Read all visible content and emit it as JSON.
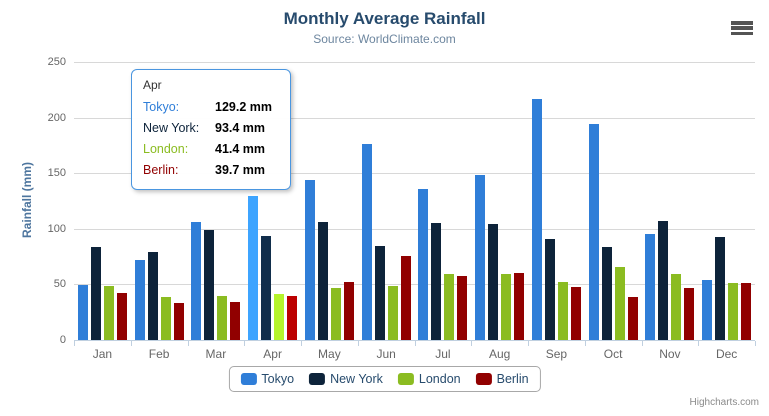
{
  "chart_data": {
    "type": "bar",
    "title": "Monthly Average Rainfall",
    "subtitle": "Source: WorldClimate.com",
    "xlabel": "",
    "ylabel": "Rainfall (mm)",
    "ylim": [
      0,
      250
    ],
    "yticks": [
      0,
      50,
      100,
      150,
      200,
      250
    ],
    "grid": true,
    "legend_position": "bottom-center",
    "categories": [
      "Jan",
      "Feb",
      "Mar",
      "Apr",
      "May",
      "Jun",
      "Jul",
      "Aug",
      "Sep",
      "Oct",
      "Nov",
      "Dec"
    ],
    "series": [
      {
        "name": "Tokyo",
        "color": "#2F7ED8",
        "values": [
          49.9,
          71.5,
          106.4,
          129.2,
          144.0,
          176.0,
          135.6,
          148.5,
          216.4,
          194.1,
          95.6,
          54.4
        ]
      },
      {
        "name": "New York",
        "color": "#0D233A",
        "values": [
          83.6,
          78.8,
          98.5,
          93.4,
          106.0,
          84.5,
          105.0,
          104.3,
          91.2,
          83.5,
          106.6,
          92.3
        ]
      },
      {
        "name": "London",
        "color": "#8BBC21",
        "values": [
          48.9,
          38.8,
          39.3,
          41.4,
          47.0,
          48.3,
          59.0,
          59.6,
          52.4,
          65.2,
          59.3,
          51.2
        ]
      },
      {
        "name": "Berlin",
        "color": "#910000",
        "values": [
          42.4,
          33.2,
          34.5,
          39.7,
          52.6,
          75.5,
          57.4,
          60.4,
          47.6,
          39.1,
          46.8,
          51.1
        ]
      }
    ]
  },
  "tooltip": {
    "category": "Apr",
    "border_color": "#4A96E0",
    "rows": [
      {
        "label": "Tokyo:",
        "value": "129.2 mm",
        "color": "#2F7ED8"
      },
      {
        "label": "New York:",
        "value": "93.4 mm",
        "color": "#0D233A"
      },
      {
        "label": "London:",
        "value": "41.4 mm",
        "color": "#8BBC21"
      },
      {
        "label": "Berlin:",
        "value": "39.7 mm",
        "color": "#910000"
      }
    ]
  },
  "credits": {
    "label": "Highcharts.com"
  },
  "toolbar": {
    "menu_icon": "hamburger-menu"
  }
}
